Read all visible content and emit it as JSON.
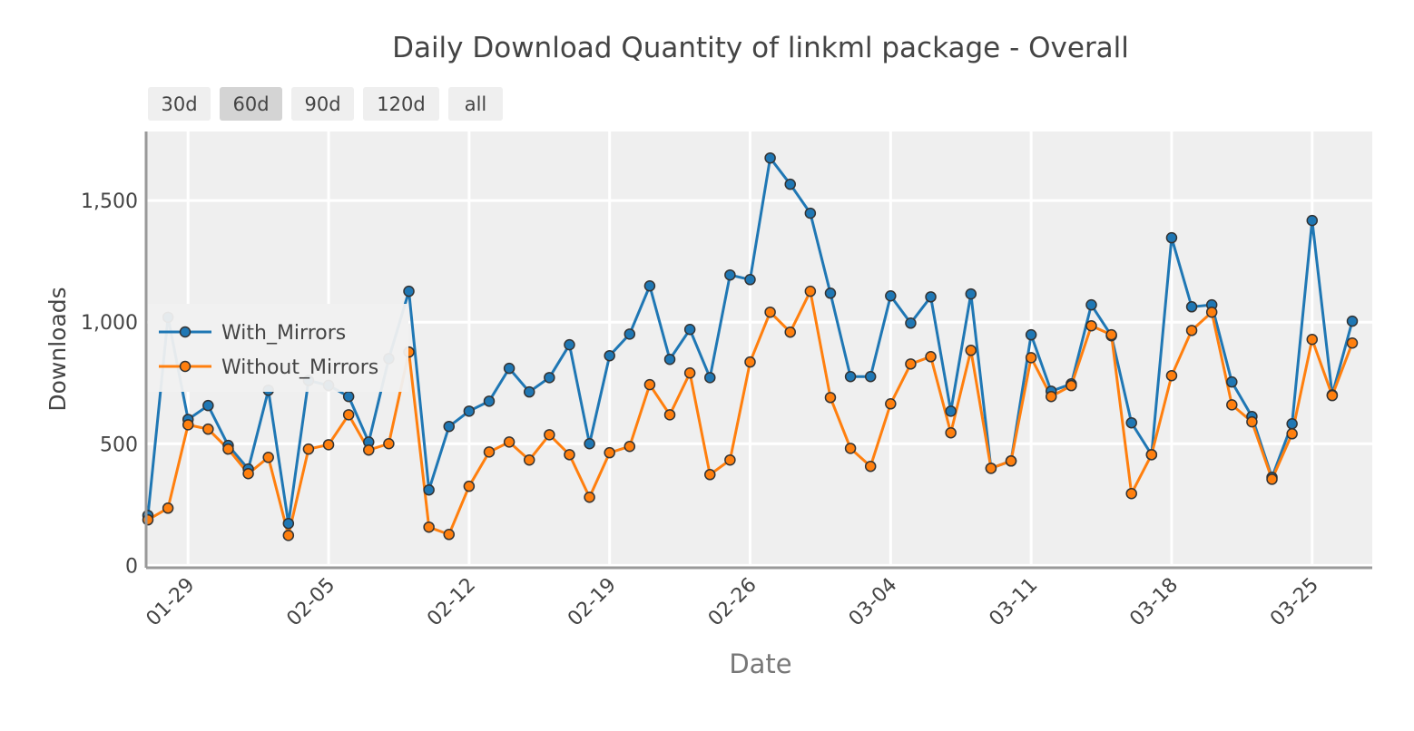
{
  "chart_data": {
    "type": "line",
    "title": "Daily Download Quantity of linkml package - Overall",
    "x_label": "Date",
    "y_label": "Downloads",
    "range_buttons": [
      "30d",
      "60d",
      "90d",
      "120d",
      "all"
    ],
    "active_button": 1,
    "categories": [
      "01-27",
      "01-28",
      "01-29",
      "01-30",
      "01-31",
      "02-01",
      "02-02",
      "02-03",
      "02-04",
      "02-05",
      "02-06",
      "02-07",
      "02-08",
      "02-09",
      "02-10",
      "02-11",
      "02-12",
      "02-13",
      "02-14",
      "02-15",
      "02-16",
      "02-17",
      "02-18",
      "02-19",
      "02-20",
      "02-21",
      "02-22",
      "02-23",
      "02-24",
      "02-25",
      "02-26",
      "02-27",
      "02-28",
      "02-29",
      "03-01",
      "03-02",
      "03-03",
      "03-04",
      "03-05",
      "03-06",
      "03-07",
      "03-08",
      "03-09",
      "03-10",
      "03-11",
      "03-12",
      "03-13",
      "03-14",
      "03-15",
      "03-16",
      "03-17",
      "03-18",
      "03-19",
      "03-20",
      "03-21",
      "03-22",
      "03-23",
      "03-24",
      "03-25",
      "03-26",
      "03-27"
    ],
    "xticks": [
      "01-29",
      "02-05",
      "02-12",
      "02-19",
      "02-26",
      "03-04",
      "03-11",
      "03-18",
      "03-25"
    ],
    "series": [
      {
        "name": "With_Mirrors",
        "color": "#1f77b4",
        "values": [
          205,
          1020,
          600,
          657,
          493,
          396,
          720,
          172,
          760,
          740,
          694,
          507,
          850,
          1127,
          310,
          571,
          634,
          675,
          810,
          713,
          772,
          907,
          500,
          862,
          951,
          1149,
          847,
          970,
          772,
          1194,
          1175,
          1675,
          1567,
          1448,
          1119,
          776,
          776,
          1108,
          996,
          1104,
          634,
          1116,
          399,
          429,
          948,
          716,
          746,
          1071,
          944,
          586,
          455,
          1347,
          1063,
          1071,
          754,
          612,
          362,
          582,
          1418,
          701,
          1004
        ]
      },
      {
        "name": "Without_Mirrors",
        "color": "#ff7f0e",
        "values": [
          187,
          235,
          578,
          560,
          478,
          377,
          444,
          123,
          478,
          496,
          619,
          474,
          500,
          877,
          157,
          127,
          325,
          466,
          507,
          433,
          537,
          455,
          280,
          463,
          489,
          743,
          619,
          791,
          373,
          433,
          836,
          1041,
          959,
          1127,
          690,
          481,
          407,
          664,
          828,
          858,
          545,
          884,
          399,
          429,
          854,
          694,
          739,
          985,
          948,
          295,
          455,
          780,
          966,
          1041,
          660,
          590,
          354,
          541,
          929,
          698,
          914
        ]
      }
    ],
    "ylim": [
      -10,
      1784
    ],
    "yticks": [
      0,
      500,
      {
        "value": 1000,
        "label": "1,000"
      },
      {
        "value": 1500,
        "label": "1,500"
      }
    ],
    "grid": true
  }
}
